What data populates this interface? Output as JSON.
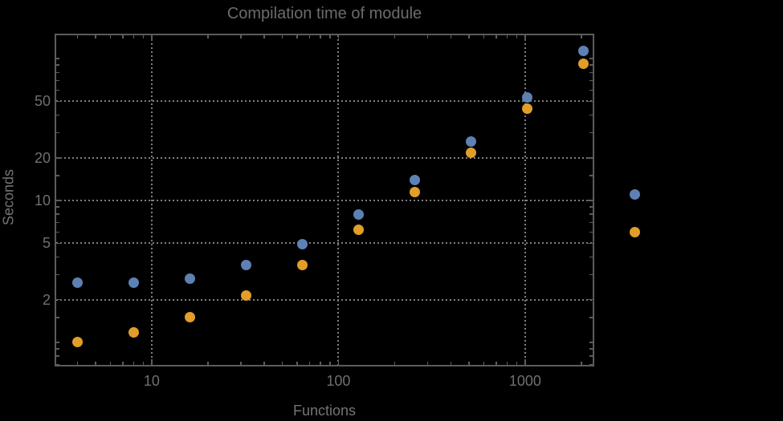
{
  "colors": {
    "background": "#000000",
    "frame": "#5c5c5c",
    "grid": "#7f7f7f",
    "title_text": "#6b6b6b",
    "axis_label_text": "#747474",
    "tick_label_text": "#6f6f6f",
    "series_blue": "#5e81b5",
    "series_orange": "#e29e28"
  },
  "chart_data": {
    "type": "scatter",
    "title": "Compilation time of module",
    "xlabel": "Functions",
    "ylabel": "Seconds",
    "xscale": "log",
    "yscale": "log",
    "xlim": [
      3.05,
      2323
    ],
    "ylim": [
      0.685,
      148
    ],
    "grid": "dotted gray lines at labeled major ticks",
    "x_ticks": {
      "values": [
        10,
        100,
        1000
      ],
      "labels": [
        "10",
        "100",
        "1000"
      ]
    },
    "y_ticks": {
      "values": [
        2,
        5,
        10,
        20,
        50
      ],
      "labels": [
        "2",
        "5",
        "10",
        "20",
        "50"
      ]
    },
    "x": [
      4,
      8,
      16,
      32,
      64,
      128,
      256,
      512,
      1024,
      2048
    ],
    "series": [
      {
        "name": "blue",
        "color": "#5e81b5",
        "values": [
          2.65,
          2.65,
          2.8,
          3.5,
          4.95,
          8.0,
          14.0,
          26.0,
          53.0,
          114.0
        ]
      },
      {
        "name": "orange",
        "color": "#e29e28",
        "values": [
          1.0,
          1.18,
          1.5,
          2.15,
          3.5,
          6.2,
          11.5,
          21.8,
          44.5,
          92.0
        ]
      }
    ],
    "legend": {
      "position": "right-of-plot",
      "labels_visible": false,
      "markers": [
        {
          "series": "blue",
          "color": "#5e81b5"
        },
        {
          "series": "orange",
          "color": "#e29e28"
        }
      ]
    }
  }
}
